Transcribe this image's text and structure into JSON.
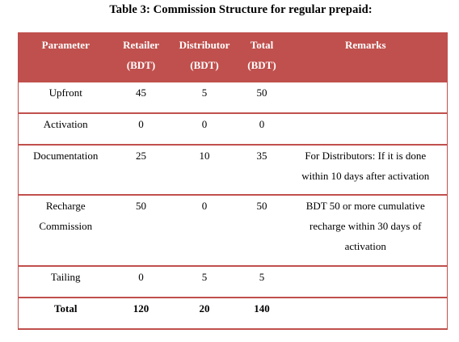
{
  "caption": "Table 3: Commission Structure for regular prepaid:",
  "header": {
    "parameter": "Parameter",
    "retailer_line1": "Retailer",
    "retailer_line2": "(BDT)",
    "distributor_line1": "Distributor",
    "distributor_line2": "(BDT)",
    "total_line1": "Total",
    "total_line2": "(BDT)",
    "remarks": "Remarks"
  },
  "rows": [
    {
      "parameter_line1": "Upfront",
      "parameter_line2": "",
      "retailer": "45",
      "distributor": "5",
      "total": "50",
      "remarks_line1": "",
      "remarks_line2": "",
      "remarks_line3": ""
    },
    {
      "parameter_line1": "Activation",
      "parameter_line2": "",
      "retailer": "0",
      "distributor": "0",
      "total": "0",
      "remarks_line1": "",
      "remarks_line2": "",
      "remarks_line3": ""
    },
    {
      "parameter_line1": "Documentation",
      "parameter_line2": "",
      "retailer": "25",
      "distributor": "10",
      "total": "35",
      "remarks_line1": "For Distributors: If it is done",
      "remarks_line2": "within 10 days after activation",
      "remarks_line3": ""
    },
    {
      "parameter_line1": "Recharge",
      "parameter_line2": "Commission",
      "retailer": "50",
      "distributor": "0",
      "total": "50",
      "remarks_line1": "BDT 50 or more cumulative",
      "remarks_line2": "recharge within 30 days of",
      "remarks_line3": "activation"
    },
    {
      "parameter_line1": "Tailing",
      "parameter_line2": "",
      "retailer": "0",
      "distributor": "5",
      "total": "5",
      "remarks_line1": "",
      "remarks_line2": "",
      "remarks_line3": ""
    }
  ],
  "total_row": {
    "parameter": "Total",
    "retailer": "120",
    "distributor": "20",
    "total": "140",
    "remarks": ""
  },
  "colors": {
    "header_background": "#c0504d",
    "header_text": "#ffffff",
    "row_border": "#c0504d"
  }
}
